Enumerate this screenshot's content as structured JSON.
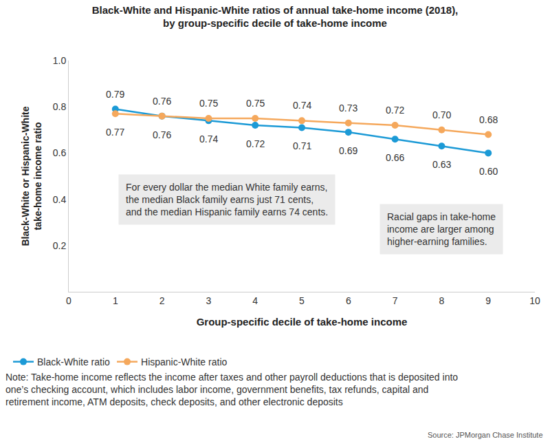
{
  "chart_data": {
    "type": "line",
    "title": [
      "Black-White and Hispanic-White ratios of annual take-home income (2018),",
      "by group-specific decile of take-home income"
    ],
    "x_label": "Group-specific decile of take-home income",
    "y_label": [
      "Black-White or Hispanic-White",
      "take-home income ratio"
    ],
    "x": [
      1,
      2,
      3,
      4,
      5,
      6,
      7,
      8,
      9
    ],
    "series": [
      {
        "name": "Black-White ratio",
        "color": "#1C9AD6",
        "marker": "circle",
        "line_style": "solid",
        "values": [
          0.79,
          0.76,
          0.74,
          0.72,
          0.71,
          0.69,
          0.66,
          0.63,
          0.6
        ],
        "value_labels": [
          "0.79",
          "0.76",
          "0.74",
          "0.72",
          "0.71",
          "0.69",
          "0.66",
          "0.63",
          "0.60"
        ]
      },
      {
        "name": "Hispanic-White ratio",
        "color": "#F5A85C",
        "marker": "circle",
        "line_style": "solid",
        "values": [
          0.77,
          0.76,
          0.75,
          0.75,
          0.74,
          0.73,
          0.72,
          0.7,
          0.68
        ],
        "value_labels": [
          "0.77",
          "0.76",
          "0.75",
          "0.75",
          "0.74",
          "0.73",
          "0.72",
          "0.70",
          "0.68"
        ]
      }
    ],
    "xlim": [
      0,
      10
    ],
    "xticks": [
      0,
      1,
      2,
      3,
      4,
      5,
      6,
      7,
      8,
      9,
      10
    ],
    "ylim": [
      0,
      1
    ],
    "yticks": [
      0.2,
      0.4,
      0.6,
      0.8,
      {
        "value": 1,
        "label": "1.0"
      }
    ],
    "grid": false,
    "legend": "bottom",
    "data_labels": true,
    "annotations": [
      [
        "For every dollar the median White family earns,",
        "the median Black family earns just 71 cents,",
        "and the median Hispanic family earns 74 cents."
      ],
      [
        "Racial gaps in take-home",
        "income are larger among",
        "higher-earning families."
      ]
    ],
    "note": [
      "Note: Take-home income reflects the income after taxes and other payroll deductions that is deposited into",
      "one’s checking account, which includes labor income, government benefits, tax refunds, capital and",
      "retirement income, ATM deposits, check deposits, and other electronic deposits"
    ],
    "source": "Source: JPMorgan Chase Institute"
  }
}
